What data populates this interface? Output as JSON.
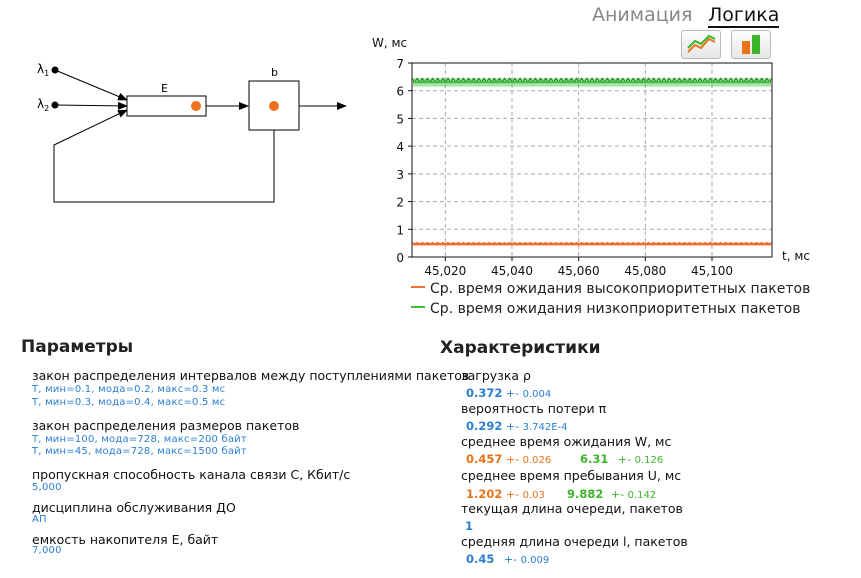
{
  "tabs": {
    "animation": "Анимация",
    "logic": "Логика"
  },
  "diagram": {
    "lambda1": "λ",
    "lambda1_sub": "1",
    "lambda2": "λ",
    "lambda2_sub": "2",
    "buffer_label": "E",
    "channel_label": "b"
  },
  "chart_data": {
    "type": "line",
    "ylabel": "W, мс",
    "xlabel": "t, мс",
    "xlim": [
      45010,
      45118
    ],
    "ylim": [
      0,
      7
    ],
    "x_ticks": [
      45020,
      45040,
      45060,
      45080,
      45100
    ],
    "x_tick_labels": [
      "45,020",
      "45,040",
      "45,060",
      "45,080",
      "45,100"
    ],
    "y_ticks": [
      0,
      1,
      2,
      3,
      4,
      5,
      6,
      7
    ],
    "grid": true,
    "legend_position": "bottom",
    "series": [
      {
        "name": "Ср. время ожидания высокоприоритетных пакетов",
        "color": "#f07030",
        "value": 0.457,
        "band": [
          0.42,
          0.52
        ]
      },
      {
        "name": "Ср. время ожидания низкоприоритетных пакетов",
        "color": "#3cc03c",
        "value": 6.31,
        "band": [
          6.15,
          6.45
        ]
      }
    ]
  },
  "parameters": {
    "title": "Параметры",
    "items": [
      {
        "label": "закон распределения интервалов между поступлениями пакетов",
        "values": [
          "T, мин=0.1, мода=0.2, макс=0.3 мс",
          "T, мин=0.3, мода=0.4, макс=0.5 мс"
        ]
      },
      {
        "label": "закон распределения размеров пакетов",
        "values": [
          "T, мин=100, мода=728, макс=200 байт",
          "T, мин=45, мода=728, макс=1500 байт"
        ]
      },
      {
        "label": "пропускная способность канала связи C, Кбит/с",
        "values": [
          "5,000"
        ]
      },
      {
        "label": "дисциплина обслуживания ДО",
        "values": [
          "АП"
        ]
      },
      {
        "label": "емкость накопителя E, байт",
        "values": [
          "7,000"
        ]
      }
    ]
  },
  "characteristics": {
    "title": "Характеристики",
    "pm": "+-",
    "items": [
      {
        "label": "загрузка ρ",
        "v1": "0.372",
        "e1": "0.004"
      },
      {
        "label": "вероятность потери π",
        "v1": "0.292",
        "e1": "3.742E-4"
      },
      {
        "label": "среднее время ожидания W, мс",
        "v1": "0.457",
        "e1": "0.026",
        "v2": "6.31",
        "e2": "0.126"
      },
      {
        "label": "среднее время пребывания U, мс",
        "v1": "1.202",
        "e1": "0.03",
        "v2": "9.882",
        "e2": "0.142"
      },
      {
        "label": "текущая длина очереди, пакетов",
        "v1": "1"
      },
      {
        "label": "средняя длина очереди l, пакетов",
        "v1": "0.45",
        "e1": "0.009"
      }
    ]
  },
  "colors": {
    "accent_blue": "#2a7fd4",
    "high_priority": "#e8731a",
    "low_priority": "#3cb52a"
  }
}
